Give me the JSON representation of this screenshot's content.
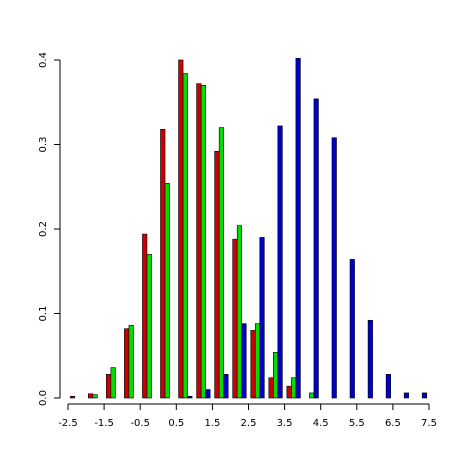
{
  "chart_data": {
    "type": "bar",
    "x": [
      -2.25,
      -1.75,
      -1.25,
      -0.75,
      -0.25,
      0.25,
      0.75,
      1.25,
      1.75,
      2.25,
      2.75,
      3.25,
      3.75,
      4.25,
      4.75,
      5.25,
      5.75,
      6.25,
      6.75,
      7.25
    ],
    "series": [
      {
        "color": "#cc0000",
        "values": [
          0.002,
          0.005,
          0.028,
          0.082,
          0.194,
          0.318,
          0.4,
          0.372,
          0.292,
          0.188,
          0.08,
          0.024,
          0.014,
          0,
          0,
          0,
          0,
          0,
          0,
          0
        ]
      },
      {
        "color": "#00dd00",
        "values": [
          0,
          0.004,
          0.036,
          0.086,
          0.17,
          0.254,
          0.384,
          0.37,
          0.32,
          0.204,
          0.088,
          0.054,
          0.024,
          0.006,
          0,
          0,
          0,
          0,
          0,
          0
        ]
      },
      {
        "color": "#0000cc",
        "values": [
          0,
          0,
          0,
          0,
          0,
          0,
          0.002,
          0.01,
          0.028,
          0.088,
          0.19,
          0.322,
          0.402,
          0.354,
          0.308,
          0.164,
          0.092,
          0.028,
          0.006,
          0.006
        ]
      }
    ],
    "xlim": [
      -2.5,
      7.5
    ],
    "xticks": [
      -2.5,
      -1.5,
      -0.5,
      0.5,
      1.5,
      2.5,
      3.5,
      4.5,
      5.5,
      6.5,
      7.5
    ],
    "ylim": [
      0,
      0.4
    ],
    "yticks": [
      {
        "value": 0,
        "label": "0.0"
      },
      0.1,
      0.2,
      0.3,
      0.4
    ],
    "grid": false
  }
}
